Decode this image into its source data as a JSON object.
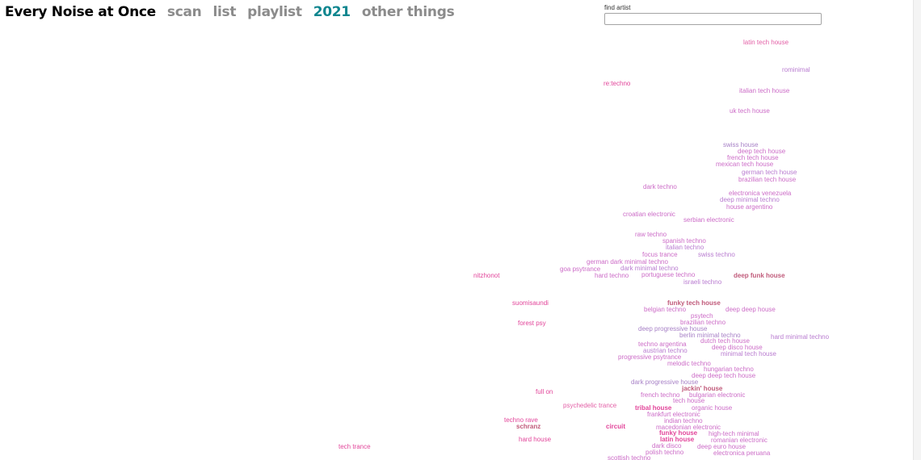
{
  "nav": {
    "title": "Every Noise at Once",
    "links": [
      {
        "label": "scan",
        "active": false
      },
      {
        "label": "list",
        "active": false
      },
      {
        "label": "playlist",
        "active": false
      },
      {
        "label": "2021",
        "active": true
      },
      {
        "label": "other things",
        "active": false
      }
    ]
  },
  "search": {
    "label": "find artist",
    "value": "",
    "placeholder": ""
  },
  "colors": {
    "title": "#000000",
    "nav_link": "#8b8b8b",
    "nav_active": "#0f868f",
    "genre_palette": [
      "#e2459a",
      "#e35fa6",
      "#cc6cc7",
      "#b97cd0",
      "#a780c6",
      "#c05a7a"
    ]
  },
  "genres": [
    {
      "name": "latin tech house",
      "color": "#e35fa6",
      "bold": false
    },
    {
      "name": "rominimal",
      "color": "#b97cd0",
      "bold": false
    },
    {
      "name": "re:techno",
      "color": "#e2459a",
      "bold": false
    },
    {
      "name": "italian tech house",
      "color": "#cc6cc7",
      "bold": false
    },
    {
      "name": "uk tech house",
      "color": "#cc6cc7",
      "bold": false
    },
    {
      "name": "swiss house",
      "color": "#a780c6",
      "bold": false
    },
    {
      "name": "deep tech house",
      "color": "#cc6cc7",
      "bold": false
    },
    {
      "name": "french tech house",
      "color": "#cc6cc7",
      "bold": false
    },
    {
      "name": "mexican tech house",
      "color": "#cc6cc7",
      "bold": false
    },
    {
      "name": "german tech house",
      "color": "#b97cd0",
      "bold": false
    },
    {
      "name": "brazilian tech house",
      "color": "#cc6cc7",
      "bold": false
    },
    {
      "name": "dark techno",
      "color": "#cc6cc7",
      "bold": false
    },
    {
      "name": "electronica venezuela",
      "color": "#cc6cc7",
      "bold": false
    },
    {
      "name": "deep minimal techno",
      "color": "#b97cd0",
      "bold": false
    },
    {
      "name": "house argentino",
      "color": "#cc6cc7",
      "bold": false
    },
    {
      "name": "croatian electronic",
      "color": "#cc6cc7",
      "bold": false
    },
    {
      "name": "serbian electronic",
      "color": "#cc6cc7",
      "bold": false
    },
    {
      "name": "raw techno",
      "color": "#cc6cc7",
      "bold": false
    },
    {
      "name": "spanish techno",
      "color": "#cc6cc7",
      "bold": false
    },
    {
      "name": "italian techno",
      "color": "#b97cd0",
      "bold": false
    },
    {
      "name": "focus trance",
      "color": "#cc6cc7",
      "bold": false
    },
    {
      "name": "swiss techno",
      "color": "#b97cd0",
      "bold": false
    },
    {
      "name": "german dark minimal techno",
      "color": "#cc6cc7",
      "bold": false
    },
    {
      "name": "goa psytrance",
      "color": "#cc6cc7",
      "bold": false
    },
    {
      "name": "dark minimal techno",
      "color": "#b97cd0",
      "bold": false
    },
    {
      "name": "hard techno",
      "color": "#cc6cc7",
      "bold": false
    },
    {
      "name": "portuguese techno",
      "color": "#cc6cc7",
      "bold": false
    },
    {
      "name": "deep funk house",
      "color": "#c05a7a",
      "bold": true
    },
    {
      "name": "nitzhonot",
      "color": "#e2459a",
      "bold": false
    },
    {
      "name": "israeli techno",
      "color": "#b97cd0",
      "bold": false
    },
    {
      "name": "suomisaundi",
      "color": "#e2459a",
      "bold": false
    },
    {
      "name": "funky tech house",
      "color": "#c05a7a",
      "bold": true
    },
    {
      "name": "belgian techno",
      "color": "#cc6cc7",
      "bold": false
    },
    {
      "name": "deep deep house",
      "color": "#cc6cc7",
      "bold": false
    },
    {
      "name": "psytech",
      "color": "#cc6cc7",
      "bold": false
    },
    {
      "name": "forest psy",
      "color": "#e2459a",
      "bold": false
    },
    {
      "name": "brazilian techno",
      "color": "#cc6cc7",
      "bold": false
    },
    {
      "name": "deep progressive house",
      "color": "#a780c6",
      "bold": false
    },
    {
      "name": "berlin minimal techno",
      "color": "#a780c6",
      "bold": false
    },
    {
      "name": "hard minimal techno",
      "color": "#b97cd0",
      "bold": false
    },
    {
      "name": "techno argentina",
      "color": "#cc6cc7",
      "bold": false
    },
    {
      "name": "dutch tech house",
      "color": "#cc6cc7",
      "bold": false
    },
    {
      "name": "austrian techno",
      "color": "#b97cd0",
      "bold": false
    },
    {
      "name": "deep disco house",
      "color": "#cc6cc7",
      "bold": false
    },
    {
      "name": "progressive psytrance",
      "color": "#cc6cc7",
      "bold": false
    },
    {
      "name": "minimal tech house",
      "color": "#b97cd0",
      "bold": false
    },
    {
      "name": "melodic techno",
      "color": "#cc6cc7",
      "bold": false
    },
    {
      "name": "hungarian techno",
      "color": "#cc6cc7",
      "bold": false
    },
    {
      "name": "deep deep tech house",
      "color": "#cc6cc7",
      "bold": false
    },
    {
      "name": "dark progressive house",
      "color": "#a780c6",
      "bold": false
    },
    {
      "name": "jackin' house",
      "color": "#c05a7a",
      "bold": true
    },
    {
      "name": "full on",
      "color": "#e2459a",
      "bold": false
    },
    {
      "name": "french techno",
      "color": "#cc6cc7",
      "bold": false
    },
    {
      "name": "bulgarian electronic",
      "color": "#cc6cc7",
      "bold": false
    },
    {
      "name": "tech house",
      "color": "#cc6cc7",
      "bold": false
    },
    {
      "name": "psychedelic trance",
      "color": "#e35fa6",
      "bold": false
    },
    {
      "name": "tribal house",
      "color": "#e2459a",
      "bold": true
    },
    {
      "name": "organic house",
      "color": "#cc6cc7",
      "bold": false
    },
    {
      "name": "frankfurt electronic",
      "color": "#cc6cc7",
      "bold": false
    },
    {
      "name": "techno rave",
      "color": "#e2459a",
      "bold": false
    },
    {
      "name": "indian techno",
      "color": "#cc6cc7",
      "bold": false
    },
    {
      "name": "schranz",
      "color": "#c05a7a",
      "bold": true
    },
    {
      "name": "circuit",
      "color": "#e2459a",
      "bold": true
    },
    {
      "name": "macedonian electronic",
      "color": "#cc6cc7",
      "bold": false
    },
    {
      "name": "funky house",
      "color": "#e2459a",
      "bold": true
    },
    {
      "name": "high-tech minimal",
      "color": "#cc6cc7",
      "bold": false
    },
    {
      "name": "hard house",
      "color": "#e2459a",
      "bold": false
    },
    {
      "name": "latin house",
      "color": "#e2459a",
      "bold": true
    },
    {
      "name": "romanian electronic",
      "color": "#cc6cc7",
      "bold": false
    },
    {
      "name": "dark disco",
      "color": "#cc6cc7",
      "bold": false
    },
    {
      "name": "deep euro house",
      "color": "#cc6cc7",
      "bold": false
    },
    {
      "name": "tech trance",
      "color": "#e2459a",
      "bold": false
    },
    {
      "name": "polish techno",
      "color": "#cc6cc7",
      "bold": false
    },
    {
      "name": "electronica peruana",
      "color": "#cc6cc7",
      "bold": false
    },
    {
      "name": "scottish techno",
      "color": "#cc6cc7",
      "bold": false
    }
  ]
}
